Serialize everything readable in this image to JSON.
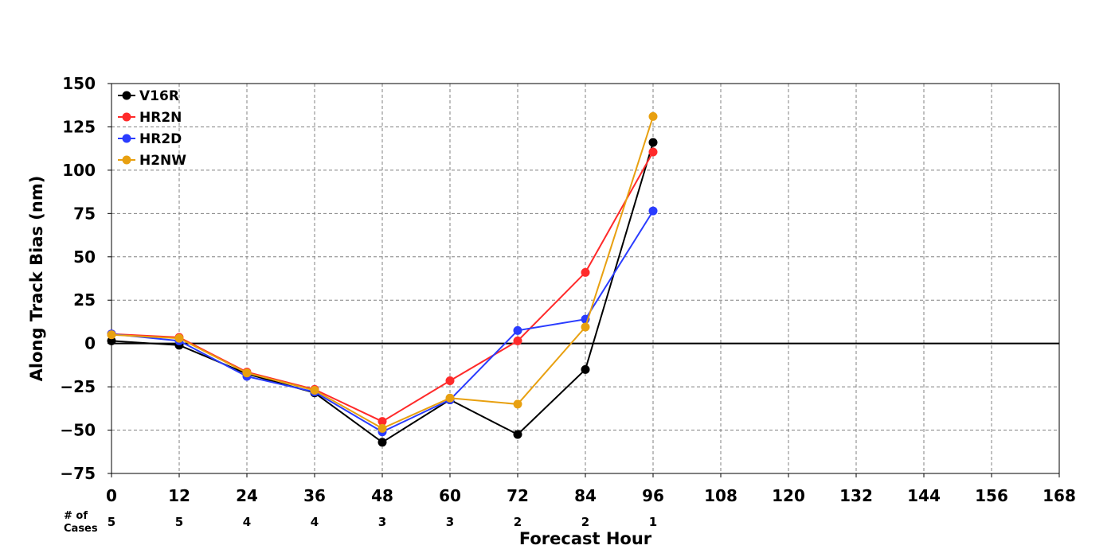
{
  "chart_data": {
    "type": "line",
    "title": "",
    "xlabel": "Forecast Hour",
    "ylabel": "Along Track Bias (nm)",
    "xlim": [
      0,
      168
    ],
    "ylim": [
      -75,
      150
    ],
    "x_ticks": [
      0,
      12,
      24,
      36,
      48,
      60,
      72,
      84,
      96,
      108,
      120,
      132,
      144,
      156,
      168
    ],
    "x_tick_labels": [
      "0",
      "12",
      "24",
      "36",
      "48",
      "60",
      "72",
      "84",
      "96",
      "108",
      "120",
      "132",
      "144",
      "156",
      "168"
    ],
    "y_ticks": [
      -75,
      -50,
      -25,
      0,
      25,
      50,
      75,
      100,
      125,
      150
    ],
    "y_tick_labels": [
      "−75",
      "−50",
      "−25",
      "0",
      "25",
      "50",
      "75",
      "100",
      "125",
      "150"
    ],
    "grid": true,
    "zero_line": true,
    "legend_position": "top-left",
    "cases_title": "# of\nCases",
    "cases": [
      {
        "x": 0,
        "label": "5"
      },
      {
        "x": 12,
        "label": "5"
      },
      {
        "x": 24,
        "label": "4"
      },
      {
        "x": 36,
        "label": "4"
      },
      {
        "x": 48,
        "label": "3"
      },
      {
        "x": 60,
        "label": "3"
      },
      {
        "x": 72,
        "label": "2"
      },
      {
        "x": 84,
        "label": "2"
      },
      {
        "x": 96,
        "label": "1"
      }
    ],
    "x": [
      0,
      12,
      24,
      36,
      48,
      60,
      72,
      84,
      96
    ],
    "series": [
      {
        "name": "V16R",
        "color": "#000000",
        "values": [
          1.5,
          -1.0,
          -17.5,
          -28.5,
          -57.0,
          -32.5,
          -52.5,
          -15.0,
          116.0
        ]
      },
      {
        "name": "HR2N",
        "color": "#ff2a2a",
        "values": [
          5.5,
          3.5,
          -16.5,
          -26.5,
          -45.0,
          -21.5,
          1.5,
          41.0,
          110.5
        ]
      },
      {
        "name": "HR2D",
        "color": "#2a3cff",
        "values": [
          5.5,
          1.5,
          -19.0,
          -28.0,
          -51.0,
          -32.5,
          7.5,
          14.0,
          76.5
        ]
      },
      {
        "name": "H2NW",
        "color": "#e8a010",
        "values": [
          5.0,
          3.0,
          -17.0,
          -27.0,
          -49.0,
          -31.5,
          -35.0,
          9.5,
          131.0
        ]
      }
    ]
  }
}
